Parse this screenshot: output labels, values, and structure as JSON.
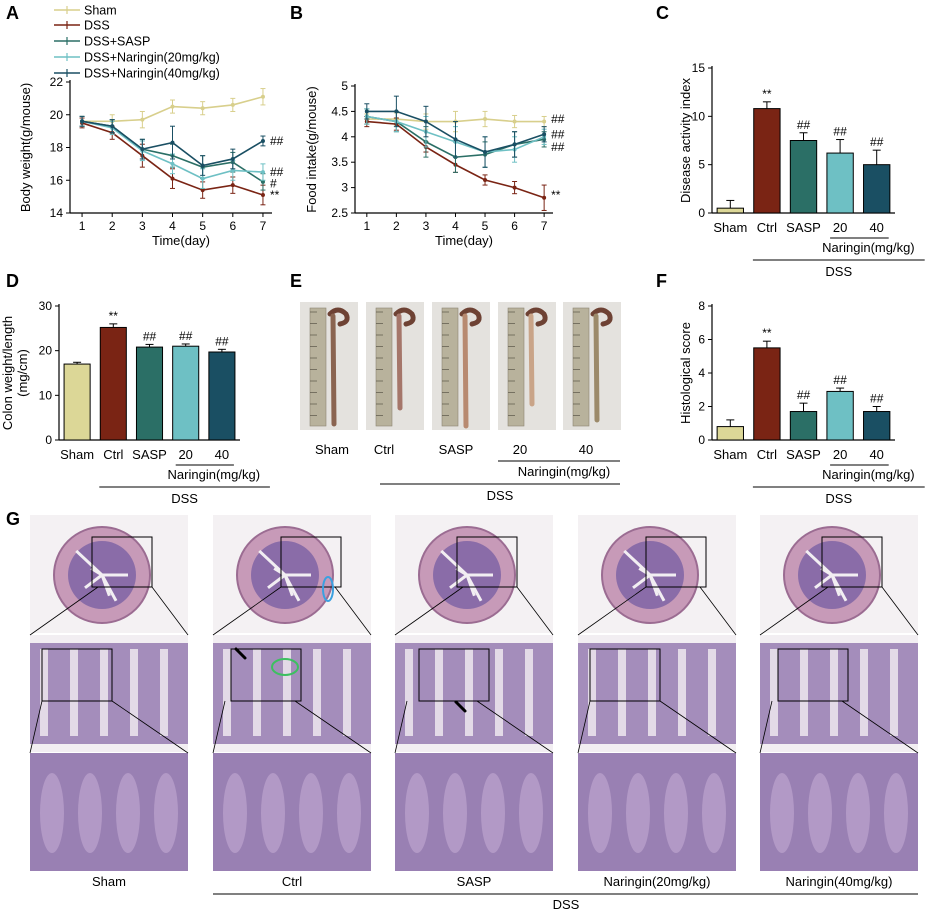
{
  "panel_labels": [
    "A",
    "B",
    "C",
    "D",
    "E",
    "F",
    "G"
  ],
  "colors": {
    "sham": "#d8cf8c",
    "dss": "#7a2414",
    "sasp": "#2b6f66",
    "nar20": "#6ec0c4",
    "nar40": "#1a4f63",
    "sham_bar": "#dcd797",
    "tissue_purple": "#8a6ca8",
    "tissue_pink": "#c79ab8"
  },
  "legend": [
    "Sham",
    "DSS",
    "DSS+SASP",
    "DSS+Naringin(20mg/kg)",
    "DSS+Naringin(40mg/kg)"
  ],
  "chart_data": [
    {
      "panel": "A",
      "type": "line",
      "xlabel": "Time(day)",
      "ylabel": "Body weight(g/mouse)",
      "x": [
        1,
        2,
        3,
        4,
        5,
        6,
        7
      ],
      "xlim": [
        0.6,
        7.3
      ],
      "ylim": [
        14,
        22
      ],
      "yticks": [
        14,
        16,
        18,
        20,
        22
      ],
      "series": [
        {
          "name": "Sham",
          "values": [
            19.6,
            19.6,
            19.7,
            20.5,
            20.4,
            20.6,
            21.1
          ],
          "err": [
            0.3,
            0.4,
            0.5,
            0.4,
            0.4,
            0.4,
            0.5
          ]
        },
        {
          "name": "DSS",
          "values": [
            19.5,
            18.9,
            17.5,
            16.1,
            15.4,
            15.7,
            15.1
          ],
          "err": [
            0.3,
            0.4,
            0.7,
            0.6,
            0.5,
            0.5,
            0.6
          ]
        },
        {
          "name": "DSS+SASP",
          "values": [
            19.6,
            19.3,
            17.9,
            17.5,
            16.8,
            17.1,
            15.9
          ],
          "err": [
            0.3,
            0.4,
            0.6,
            0.7,
            0.7,
            0.6,
            0.5
          ]
        },
        {
          "name": "DSS+Naringin(20mg/kg)",
          "values": [
            19.6,
            19.2,
            17.8,
            17.0,
            16.1,
            16.6,
            16.5
          ],
          "err": [
            0.3,
            0.4,
            0.6,
            0.6,
            0.6,
            0.6,
            0.5
          ]
        },
        {
          "name": "DSS+Naringin(40mg/kg)",
          "values": [
            19.6,
            19.3,
            17.9,
            18.3,
            16.9,
            17.3,
            18.4
          ],
          "err": [
            0.3,
            0.4,
            0.6,
            1.0,
            0.6,
            0.6,
            0.3
          ]
        }
      ],
      "annotations": [
        "##",
        "##",
        "#",
        "**"
      ]
    },
    {
      "panel": "B",
      "type": "line",
      "xlabel": "Time(day)",
      "ylabel": "Food intake(g/mouse)",
      "x": [
        1,
        2,
        3,
        4,
        5,
        6,
        7
      ],
      "xlim": [
        0.6,
        7.3
      ],
      "ylim": [
        2.5,
        5.0
      ],
      "yticks": [
        2.5,
        3.0,
        3.5,
        4.0,
        4.5,
        5.0
      ],
      "series": [
        {
          "name": "Sham",
          "values": [
            4.35,
            4.35,
            4.3,
            4.3,
            4.35,
            4.3,
            4.3
          ],
          "err": [
            0.1,
            0.12,
            0.15,
            0.2,
            0.15,
            0.12,
            0.1
          ]
        },
        {
          "name": "DSS",
          "values": [
            4.3,
            4.25,
            3.8,
            3.45,
            3.15,
            3.0,
            2.8
          ],
          "err": [
            0.1,
            0.12,
            0.1,
            0.15,
            0.1,
            0.12,
            0.25
          ]
        },
        {
          "name": "DSS+SASP",
          "values": [
            4.4,
            4.3,
            3.9,
            3.6,
            3.65,
            3.85,
            3.95
          ],
          "err": [
            0.15,
            0.2,
            0.3,
            0.3,
            0.25,
            0.25,
            0.15
          ]
        },
        {
          "name": "DSS+Naringin(20mg/kg)",
          "values": [
            4.4,
            4.3,
            4.1,
            3.9,
            3.7,
            3.75,
            4.0
          ],
          "err": [
            0.15,
            0.2,
            0.3,
            0.3,
            0.3,
            0.25,
            0.15
          ]
        },
        {
          "name": "DSS+Naringin(40mg/kg)",
          "values": [
            4.5,
            4.5,
            4.3,
            3.95,
            3.7,
            3.85,
            4.05
          ],
          "err": [
            0.15,
            0.3,
            0.3,
            0.35,
            0.3,
            0.25,
            0.15
          ]
        }
      ],
      "annotations": [
        "##",
        "##",
        "##",
        "**"
      ]
    },
    {
      "panel": "C",
      "type": "bar",
      "ylabel": "Disease activity index",
      "categories": [
        "Sham",
        "Ctrl",
        "SASP",
        "20",
        "40"
      ],
      "values": [
        0.5,
        10.8,
        7.5,
        6.2,
        5.0
      ],
      "err": [
        0.8,
        0.7,
        0.8,
        1.4,
        1.5
      ],
      "ylim": [
        0,
        15
      ],
      "yticks": [
        0,
        5,
        10,
        15
      ],
      "sig": [
        "",
        "**",
        "##",
        "##",
        "##"
      ],
      "group_label": "Naringin(mg/kg)",
      "bracket_label": "DSS"
    },
    {
      "panel": "D",
      "type": "bar",
      "ylabel": "Colon weight/length (mg/cm)",
      "categories": [
        "Sham",
        "Ctrl",
        "SASP",
        "20",
        "40"
      ],
      "values": [
        17.0,
        25.2,
        20.8,
        21.0,
        19.7
      ],
      "err": [
        0.4,
        0.8,
        0.6,
        0.5,
        0.6
      ],
      "ylim": [
        0,
        30
      ],
      "yticks": [
        0,
        10,
        20,
        30
      ],
      "sig": [
        "",
        "**",
        "##",
        "##",
        "##"
      ],
      "group_label": "Naringin(mg/kg)",
      "bracket_label": "DSS"
    },
    {
      "panel": "F",
      "type": "bar",
      "ylabel": "Histological score",
      "categories": [
        "Sham",
        "Ctrl",
        "SASP",
        "20",
        "40"
      ],
      "values": [
        0.8,
        5.5,
        1.7,
        2.9,
        1.7
      ],
      "err": [
        0.4,
        0.4,
        0.5,
        0.2,
        0.3
      ],
      "ylim": [
        0,
        8
      ],
      "yticks": [
        0,
        2,
        4,
        6,
        8
      ],
      "sig": [
        "",
        "**",
        "##",
        "##",
        "##"
      ],
      "group_label": "Naringin(mg/kg)",
      "bracket_label": "DSS"
    }
  ],
  "panel_e": {
    "labels": [
      "Sham",
      "Ctrl",
      "SASP",
      "20",
      "40"
    ],
    "group_label": "Naringin(mg/kg)",
    "bracket_label": "DSS"
  },
  "panel_g": {
    "labels": [
      "Sham",
      "Ctrl",
      "SASP",
      "Naringin(20mg/kg)",
      "Naringin(40mg/kg)"
    ],
    "bracket_label": "DSS"
  }
}
